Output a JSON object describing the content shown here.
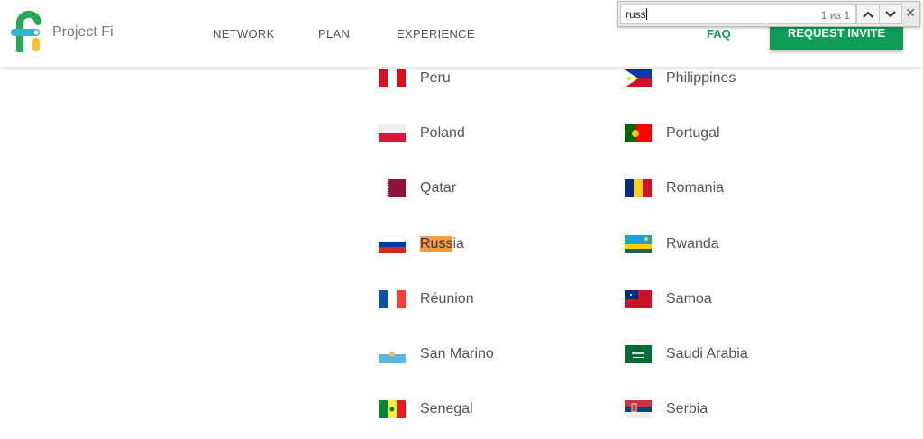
{
  "header": {
    "brand": "Project Fi",
    "nav": [
      "NETWORK",
      "PLAN",
      "EXPERIENCE"
    ],
    "faq": "FAQ",
    "invite": "REQUEST INVITE",
    "accent": "#0f9d58"
  },
  "find_bar": {
    "query": "russ",
    "count": "1 из 1",
    "highlight_color": "#f89b3a"
  },
  "countries_left": [
    {
      "name": "Peru",
      "flag": "peru"
    },
    {
      "name": "Poland",
      "flag": "poland"
    },
    {
      "name": "Qatar",
      "flag": "qatar"
    },
    {
      "name": "Russia",
      "flag": "russia",
      "match": "Russ",
      "rest": "ia"
    },
    {
      "name": "Réunion",
      "flag": "france"
    },
    {
      "name": "San Marino",
      "flag": "san-marino"
    },
    {
      "name": "Senegal",
      "flag": "senegal"
    }
  ],
  "countries_right": [
    {
      "name": "Philippines",
      "flag": "philippines"
    },
    {
      "name": "Portugal",
      "flag": "portugal"
    },
    {
      "name": "Romania",
      "flag": "romania"
    },
    {
      "name": "Rwanda",
      "flag": "rwanda"
    },
    {
      "name": "Samoa",
      "flag": "samoa"
    },
    {
      "name": "Saudi Arabia",
      "flag": "saudi-arabia"
    },
    {
      "name": "Serbia",
      "flag": "serbia"
    }
  ]
}
